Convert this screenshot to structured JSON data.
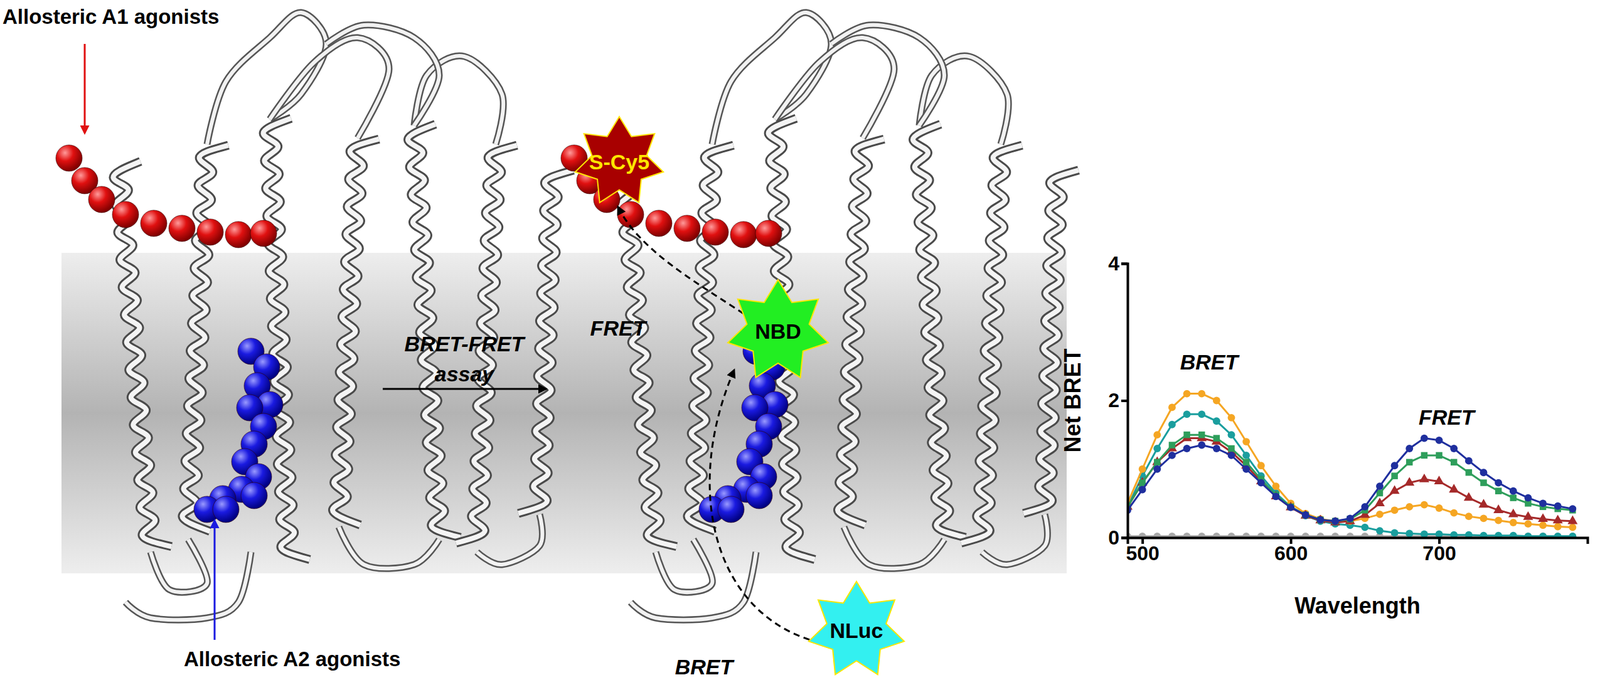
{
  "diagram": {
    "a1_label": "Allosteric A1 agonists",
    "a2_label": "Allosteric A2 agonists",
    "assay_label": [
      "BRET-FRET",
      "assay"
    ],
    "fret_label": "FRET",
    "bret_label": "BRET",
    "acceptor": "S-Cy5",
    "fluorophore": "NBD",
    "donor": "NLuc"
  },
  "chart_data": {
    "type": "line",
    "x_label": "Wavelength",
    "y_label": "Net BRET",
    "x": [
      490,
      500,
      510,
      520,
      530,
      540,
      550,
      560,
      570,
      580,
      590,
      600,
      610,
      620,
      630,
      640,
      650,
      660,
      670,
      680,
      690,
      700,
      710,
      720,
      730,
      740,
      750,
      760,
      770,
      780,
      790
    ],
    "xlim": [
      490,
      800
    ],
    "xticks": [
      500,
      600,
      700
    ],
    "ylim": [
      0,
      4
    ],
    "yticks": [
      0,
      2,
      4
    ],
    "annotations": [
      {
        "text": "BRET",
        "x": 545,
        "y": 2.45
      },
      {
        "text": "FRET",
        "x": 705,
        "y": 1.65
      }
    ],
    "series": [
      {
        "color": "#a9a9a9",
        "marker": "circle",
        "values": [
          0.02,
          0.02,
          0.02,
          0.02,
          0.02,
          0.02,
          0.02,
          0.02,
          0.02,
          0.02,
          0.02,
          0.02,
          0.02,
          0.02,
          0.02,
          0.02,
          0.02,
          0.02,
          0.02,
          0.02,
          0.02,
          0.02,
          0.02,
          0.02,
          0.02,
          0.02,
          0.02,
          0.02,
          0.02,
          0.02,
          0.02
        ]
      },
      {
        "color": "#1a9e9e",
        "marker": "circle",
        "values": [
          0.45,
          0.9,
          1.3,
          1.65,
          1.8,
          1.8,
          1.7,
          1.5,
          1.2,
          0.9,
          0.65,
          0.45,
          0.32,
          0.24,
          0.2,
          0.18,
          0.15,
          0.1,
          0.07,
          0.06,
          0.05,
          0.05,
          0.04,
          0.04,
          0.03,
          0.03,
          0.03,
          0.02,
          0.02,
          0.02,
          0.02
        ]
      },
      {
        "color": "#f5a623",
        "marker": "circle",
        "values": [
          0.5,
          1.0,
          1.5,
          1.9,
          2.1,
          2.1,
          2.0,
          1.75,
          1.4,
          1.05,
          0.75,
          0.5,
          0.35,
          0.27,
          0.24,
          0.24,
          0.28,
          0.34,
          0.4,
          0.45,
          0.48,
          0.43,
          0.36,
          0.31,
          0.28,
          0.25,
          0.22,
          0.2,
          0.18,
          0.16,
          0.15
        ]
      },
      {
        "color": "#a52a2a",
        "marker": "triangle",
        "values": [
          0.45,
          0.8,
          1.1,
          1.3,
          1.45,
          1.45,
          1.4,
          1.25,
          1.05,
          0.82,
          0.6,
          0.44,
          0.32,
          0.25,
          0.22,
          0.24,
          0.33,
          0.5,
          0.68,
          0.8,
          0.85,
          0.82,
          0.7,
          0.58,
          0.48,
          0.4,
          0.34,
          0.3,
          0.27,
          0.25,
          0.24
        ]
      },
      {
        "color": "#2e9e5b",
        "marker": "square",
        "values": [
          0.45,
          0.8,
          1.1,
          1.35,
          1.5,
          1.5,
          1.45,
          1.3,
          1.1,
          0.85,
          0.62,
          0.45,
          0.33,
          0.26,
          0.24,
          0.27,
          0.4,
          0.65,
          0.9,
          1.1,
          1.2,
          1.2,
          1.1,
          0.95,
          0.8,
          0.68,
          0.58,
          0.5,
          0.45,
          0.42,
          0.4
        ]
      },
      {
        "color": "#1f2f9e",
        "marker": "circle",
        "values": [
          0.4,
          0.7,
          1.0,
          1.2,
          1.3,
          1.35,
          1.3,
          1.2,
          1.0,
          0.8,
          0.6,
          0.44,
          0.33,
          0.26,
          0.24,
          0.28,
          0.45,
          0.75,
          1.05,
          1.3,
          1.45,
          1.42,
          1.3,
          1.12,
          0.95,
          0.8,
          0.68,
          0.58,
          0.5,
          0.46,
          0.42
        ]
      }
    ]
  }
}
